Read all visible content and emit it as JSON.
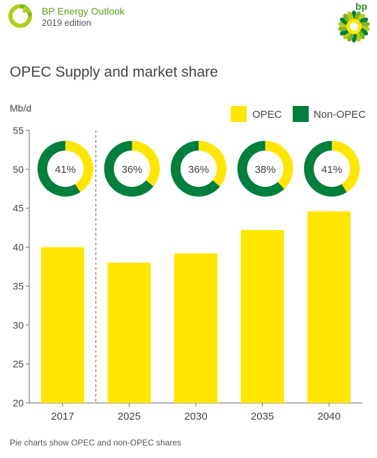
{
  "header": {
    "outlook_title": "BP Energy Outlook",
    "edition": "2019 edition",
    "bp_wordmark": "bp"
  },
  "colors": {
    "opec": "#ffe600",
    "non_opec": "#007f3e",
    "brand_green": "#5a9e1a",
    "axis": "#666666",
    "text": "#444444"
  },
  "chart_data": {
    "type": "bar",
    "title": "OPEC Supply and market share",
    "ylabel": "Mb/d",
    "xlabel": "",
    "categories": [
      "2017",
      "2025",
      "2030",
      "2035",
      "2040"
    ],
    "values": [
      40,
      38,
      39.2,
      42.2,
      44.6
    ],
    "ylim": [
      20,
      55
    ],
    "yticks": [
      20,
      25,
      30,
      35,
      40,
      45,
      50,
      55
    ],
    "grid": false,
    "legend": {
      "placement": "top-right",
      "entries": [
        "OPEC",
        "Non-OPEC"
      ]
    },
    "pie_charts": {
      "labels": [
        "41%",
        "36%",
        "36%",
        "38%",
        "41%"
      ],
      "opec_share": [
        41,
        36,
        36,
        38,
        41
      ]
    },
    "divider_after_category": "2017"
  },
  "footnote": "Pie charts show OPEC and non-OPEC shares"
}
